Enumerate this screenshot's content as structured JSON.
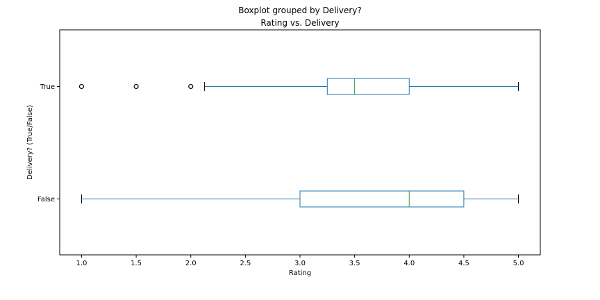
{
  "chart_data": {
    "type": "boxplot",
    "orientation": "horizontal",
    "suptitle": "Boxplot grouped by Delivery?",
    "title": "Rating vs. Delivery",
    "xlabel": "Rating",
    "ylabel": "Delivery? (True/False)",
    "xlim": [
      0.8,
      5.2
    ],
    "xticks": [
      "1.0",
      "1.5",
      "2.0",
      "2.5",
      "3.0",
      "3.5",
      "4.0",
      "4.5",
      "5.0"
    ],
    "grid": false,
    "colors": {
      "box": "#1f77b4",
      "median": "#2ca02c",
      "whisker_cap": "#000000",
      "flier": "#000000"
    },
    "groups": [
      {
        "label": "True",
        "whislo": 2.125,
        "q1": 3.25,
        "med": 3.5,
        "q3": 4.0,
        "whishi": 5.0,
        "fliers": [
          1.0,
          1.5,
          2.0
        ]
      },
      {
        "label": "False",
        "whislo": 1.0,
        "q1": 3.0,
        "med": 4.0,
        "q3": 4.5,
        "whishi": 5.0,
        "fliers": []
      }
    ]
  }
}
